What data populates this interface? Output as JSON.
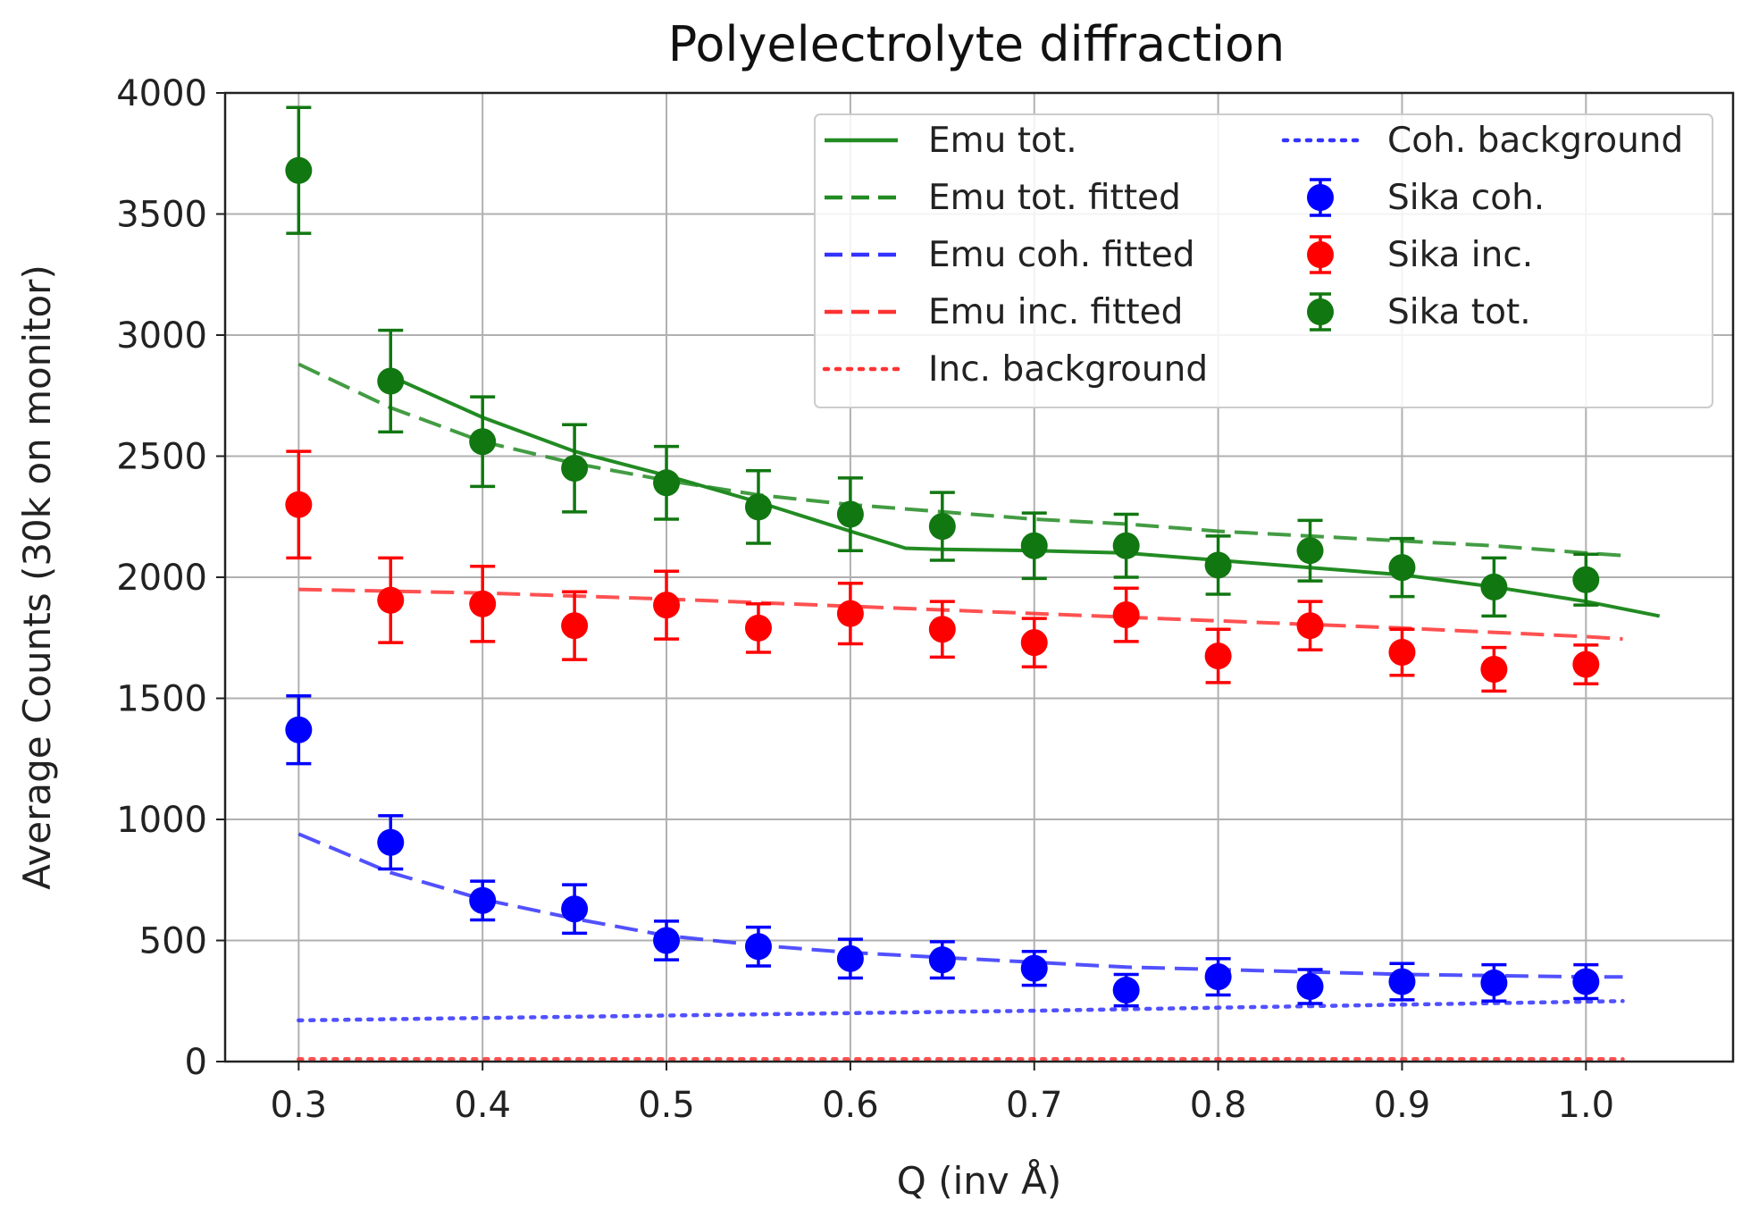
{
  "chart_data": {
    "type": "scatter",
    "title": "Polyelectrolyte diffraction",
    "xlabel": "Q (inv Å)",
    "ylabel": "Average Counts (30k on monitor)",
    "xlim": [
      0.26,
      1.08
    ],
    "ylim": [
      0,
      4000
    ],
    "grid": true,
    "legend_position": "top-right",
    "x_ticks": [
      0.3,
      0.4,
      0.5,
      0.6,
      0.7,
      0.8,
      0.9,
      1.0
    ],
    "x_tick_labels": [
      "0.3",
      "0.4",
      "0.5",
      "0.6",
      "0.7",
      "0.8",
      "0.9",
      "1.0"
    ],
    "y_ticks": [
      0,
      500,
      1000,
      1500,
      2000,
      2500,
      3000,
      3500,
      4000
    ],
    "y_tick_labels": [
      "0",
      "500",
      "1000",
      "1500",
      "2000",
      "2500",
      "3000",
      "3500",
      "4000"
    ],
    "lines": [
      {
        "name": "Emu tot.",
        "color": "#228b22",
        "style": "solid",
        "x": [
          0.35,
          0.4,
          0.45,
          0.5,
          0.55,
          0.6,
          0.63,
          0.65,
          0.7,
          0.75,
          0.8,
          0.85,
          0.9,
          0.95,
          1.0,
          1.04
        ],
        "y": [
          2830,
          2660,
          2520,
          2420,
          2310,
          2190,
          2120,
          2115,
          2110,
          2100,
          2070,
          2040,
          2010,
          1960,
          1900,
          1840
        ]
      },
      {
        "name": "Emu tot. fitted",
        "color": "#228b22",
        "style": "dashed",
        "x": [
          0.3,
          0.35,
          0.4,
          0.45,
          0.5,
          0.55,
          0.6,
          0.65,
          0.7,
          0.75,
          0.8,
          0.85,
          0.9,
          0.95,
          1.0,
          1.02
        ],
        "y": [
          2880,
          2700,
          2560,
          2470,
          2400,
          2340,
          2300,
          2270,
          2240,
          2220,
          2190,
          2170,
          2150,
          2130,
          2100,
          2090
        ]
      },
      {
        "name": "Emu coh. fitted",
        "color": "#3333ff",
        "style": "dashed",
        "x": [
          0.3,
          0.35,
          0.4,
          0.45,
          0.5,
          0.55,
          0.6,
          0.65,
          0.7,
          0.75,
          0.8,
          0.85,
          0.9,
          0.95,
          1.0,
          1.02
        ],
        "y": [
          940,
          780,
          670,
          590,
          520,
          480,
          450,
          430,
          410,
          390,
          380,
          370,
          360,
          355,
          350,
          350
        ]
      },
      {
        "name": "Emu inc. fitted",
        "color": "#ff3333",
        "style": "dashed",
        "x": [
          0.3,
          0.4,
          0.5,
          0.6,
          0.7,
          0.8,
          0.9,
          1.0,
          1.02
        ],
        "y": [
          1950,
          1935,
          1910,
          1880,
          1850,
          1820,
          1790,
          1755,
          1745
        ]
      },
      {
        "name": "Inc. background",
        "color": "#ff3333",
        "style": "dotted",
        "x": [
          0.3,
          1.02
        ],
        "y": [
          10,
          10
        ]
      },
      {
        "name": "Coh. background",
        "color": "#3333ff",
        "style": "dotted",
        "x": [
          0.3,
          0.5,
          0.7,
          0.9,
          1.02
        ],
        "y": [
          170,
          190,
          210,
          235,
          250
        ]
      }
    ],
    "errorbar_series": [
      {
        "name": "Sika coh.",
        "color": "#0000ff",
        "x": [
          0.3,
          0.35,
          0.4,
          0.45,
          0.5,
          0.55,
          0.6,
          0.65,
          0.7,
          0.75,
          0.8,
          0.85,
          0.9,
          0.95,
          1.0
        ],
        "y": [
          1370,
          905,
          665,
          630,
          500,
          475,
          425,
          420,
          385,
          295,
          350,
          310,
          330,
          325,
          330
        ],
        "err": [
          140,
          110,
          80,
          100,
          80,
          80,
          80,
          75,
          70,
          65,
          75,
          70,
          75,
          75,
          70
        ]
      },
      {
        "name": "Sika inc.",
        "color": "#ff0000",
        "x": [
          0.3,
          0.35,
          0.4,
          0.45,
          0.5,
          0.55,
          0.6,
          0.65,
          0.7,
          0.75,
          0.8,
          0.85,
          0.9,
          0.95,
          1.0
        ],
        "y": [
          2300,
          1905,
          1890,
          1800,
          1885,
          1790,
          1850,
          1785,
          1730,
          1845,
          1675,
          1800,
          1690,
          1620,
          1640
        ],
        "err": [
          220,
          175,
          155,
          140,
          140,
          100,
          125,
          115,
          100,
          110,
          110,
          100,
          95,
          90,
          80
        ]
      },
      {
        "name": "Sika tot.",
        "color": "#117711",
        "x": [
          0.3,
          0.35,
          0.4,
          0.45,
          0.5,
          0.55,
          0.6,
          0.65,
          0.7,
          0.75,
          0.8,
          0.85,
          0.9,
          0.95,
          1.0
        ],
        "y": [
          3680,
          2810,
          2560,
          2450,
          2390,
          2290,
          2260,
          2210,
          2130,
          2130,
          2050,
          2110,
          2040,
          1960,
          1990
        ],
        "err": [
          260,
          210,
          185,
          180,
          150,
          150,
          150,
          140,
          135,
          130,
          120,
          125,
          120,
          120,
          105
        ]
      }
    ],
    "legend": {
      "column1": [
        "Emu tot.",
        "Emu tot. fitted",
        "Emu coh. fitted",
        "Emu inc. fitted",
        "Inc. background"
      ],
      "column2": [
        "Coh. background",
        "Sika coh.",
        "Sika inc.",
        "Sika tot."
      ]
    }
  }
}
